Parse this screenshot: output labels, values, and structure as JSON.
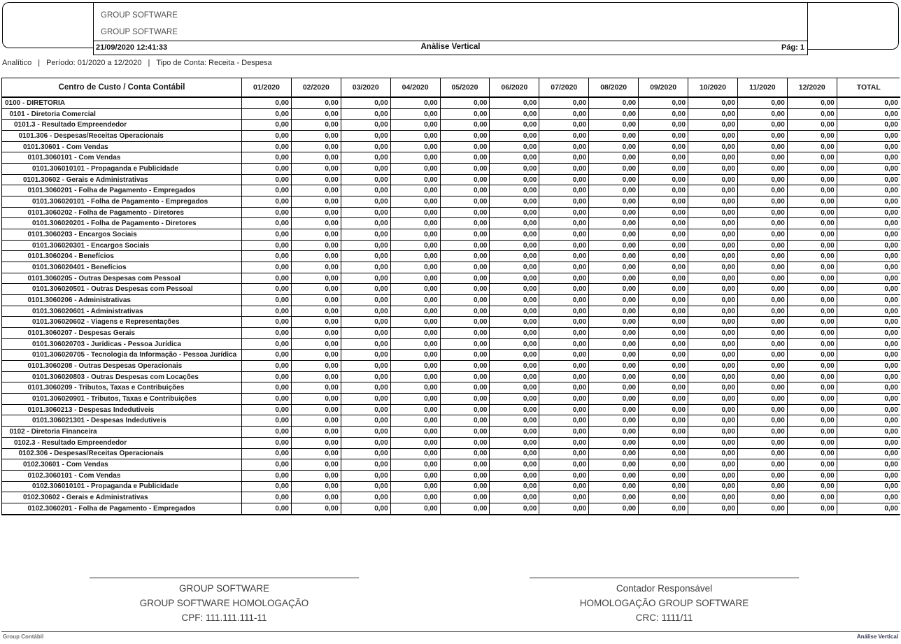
{
  "colors": {
    "border": "#000000",
    "table_text": "#1c1c1c",
    "company_text": "#4f4f4f",
    "signature_text": "#3d3d3d",
    "footer_left_text": "#6e6e6e",
    "footer_right_text": "#3a3a57"
  },
  "header": {
    "company_line1": "GROUP SOFTWARE",
    "company_line2": "GROUP SOFTWARE",
    "datetime": "21/09/2020 12:41:33",
    "report_title": "Anàlise Vertical",
    "page_label": "Pág: 1"
  },
  "filters": {
    "separator": "|",
    "parts": [
      "Analítico",
      "Período: 01/2020 a 12/2020",
      "Tipo de Conta: Receita - Despesa"
    ]
  },
  "table": {
    "first_column_header": "Centro de Custo / Conta Contábil",
    "month_headers": [
      "01/2020",
      "02/2020",
      "03/2020",
      "04/2020",
      "05/2020",
      "06/2020",
      "07/2020",
      "08/2020",
      "09/2020",
      "10/2020",
      "11/2020",
      "12/2020"
    ],
    "total_header": "TOTAL",
    "rows": [
      {
        "level": 0,
        "label": "0100 - DIRETORIA",
        "values": [
          "0,00",
          "0,00",
          "0,00",
          "0,00",
          "0,00",
          "0,00",
          "0,00",
          "0,00",
          "0,00",
          "0,00",
          "0,00",
          "0,00",
          "0,00"
        ]
      },
      {
        "level": 1,
        "label": "0101 - Diretoria Comercial",
        "values": [
          "0,00",
          "0,00",
          "0,00",
          "0,00",
          "0,00",
          "0,00",
          "0,00",
          "0,00",
          "0,00",
          "0,00",
          "0,00",
          "0,00",
          "0,00"
        ]
      },
      {
        "level": 2,
        "label": "0101.3 - Resultado Empreendedor",
        "values": [
          "0,00",
          "0,00",
          "0,00",
          "0,00",
          "0,00",
          "0,00",
          "0,00",
          "0,00",
          "0,00",
          "0,00",
          "0,00",
          "0,00",
          "0,00"
        ]
      },
      {
        "level": 3,
        "label": "0101.306 - Despesas/Receitas Operacionais",
        "values": [
          "0,00",
          "0,00",
          "0,00",
          "0,00",
          "0,00",
          "0,00",
          "0,00",
          "0,00",
          "0,00",
          "0,00",
          "0,00",
          "0,00",
          "0,00"
        ]
      },
      {
        "level": 4,
        "label": "0101.30601 - Com Vendas",
        "values": [
          "0,00",
          "0,00",
          "0,00",
          "0,00",
          "0,00",
          "0,00",
          "0,00",
          "0,00",
          "0,00",
          "0,00",
          "0,00",
          "0,00",
          "0,00"
        ]
      },
      {
        "level": 5,
        "label": "0101.3060101 - Com Vendas",
        "values": [
          "0,00",
          "0,00",
          "0,00",
          "0,00",
          "0,00",
          "0,00",
          "0,00",
          "0,00",
          "0,00",
          "0,00",
          "0,00",
          "0,00",
          "0,00"
        ]
      },
      {
        "level": 6,
        "label": "0101.306010101 - Propaganda e Publicidade",
        "values": [
          "0,00",
          "0,00",
          "0,00",
          "0,00",
          "0,00",
          "0,00",
          "0,00",
          "0,00",
          "0,00",
          "0,00",
          "0,00",
          "0,00",
          "0,00"
        ]
      },
      {
        "level": 4,
        "label": "0101.30602 - Gerais e Administrativas",
        "values": [
          "0,00",
          "0,00",
          "0,00",
          "0,00",
          "0,00",
          "0,00",
          "0,00",
          "0,00",
          "0,00",
          "0,00",
          "0,00",
          "0,00",
          "0,00"
        ]
      },
      {
        "level": 5,
        "label": "0101.3060201 - Folha de Pagamento - Empregados",
        "values": [
          "0,00",
          "0,00",
          "0,00",
          "0,00",
          "0,00",
          "0,00",
          "0,00",
          "0,00",
          "0,00",
          "0,00",
          "0,00",
          "0,00",
          "0,00"
        ]
      },
      {
        "level": 6,
        "label": "0101.306020101 - Folha de Pagamento - Empregados",
        "values": [
          "0,00",
          "0,00",
          "0,00",
          "0,00",
          "0,00",
          "0,00",
          "0,00",
          "0,00",
          "0,00",
          "0,00",
          "0,00",
          "0,00",
          "0,00"
        ]
      },
      {
        "level": 5,
        "label": "0101.3060202 - Folha de Pagamento - Diretores",
        "values": [
          "0,00",
          "0,00",
          "0,00",
          "0,00",
          "0,00",
          "0,00",
          "0,00",
          "0,00",
          "0,00",
          "0,00",
          "0,00",
          "0,00",
          "0,00"
        ]
      },
      {
        "level": 6,
        "label": "0101.306020201 - Folha de Pagamento - Diretores",
        "values": [
          "0,00",
          "0,00",
          "0,00",
          "0,00",
          "0,00",
          "0,00",
          "0,00",
          "0,00",
          "0,00",
          "0,00",
          "0,00",
          "0,00",
          "0,00"
        ]
      },
      {
        "level": 5,
        "label": "0101.3060203 - Encargos Sociais",
        "values": [
          "0,00",
          "0,00",
          "0,00",
          "0,00",
          "0,00",
          "0,00",
          "0,00",
          "0,00",
          "0,00",
          "0,00",
          "0,00",
          "0,00",
          "0,00"
        ]
      },
      {
        "level": 6,
        "label": "0101.306020301 - Encargos Sociais",
        "values": [
          "0,00",
          "0,00",
          "0,00",
          "0,00",
          "0,00",
          "0,00",
          "0,00",
          "0,00",
          "0,00",
          "0,00",
          "0,00",
          "0,00",
          "0,00"
        ]
      },
      {
        "level": 5,
        "label": "0101.3060204 - Benefícios",
        "values": [
          "0,00",
          "0,00",
          "0,00",
          "0,00",
          "0,00",
          "0,00",
          "0,00",
          "0,00",
          "0,00",
          "0,00",
          "0,00",
          "0,00",
          "0,00"
        ]
      },
      {
        "level": 6,
        "label": "0101.306020401 - Benefícios",
        "values": [
          "0,00",
          "0,00",
          "0,00",
          "0,00",
          "0,00",
          "0,00",
          "0,00",
          "0,00",
          "0,00",
          "0,00",
          "0,00",
          "0,00",
          "0,00"
        ]
      },
      {
        "level": 5,
        "label": "0101.3060205 - Outras Despesas com Pessoal",
        "values": [
          "0,00",
          "0,00",
          "0,00",
          "0,00",
          "0,00",
          "0,00",
          "0,00",
          "0,00",
          "0,00",
          "0,00",
          "0,00",
          "0,00",
          "0,00"
        ]
      },
      {
        "level": 6,
        "label": "0101.306020501 - Outras Despesas com Pessoal",
        "values": [
          "0,00",
          "0,00",
          "0,00",
          "0,00",
          "0,00",
          "0,00",
          "0,00",
          "0,00",
          "0,00",
          "0,00",
          "0,00",
          "0,00",
          "0,00"
        ]
      },
      {
        "level": 5,
        "label": "0101.3060206 - Administrativas",
        "values": [
          "0,00",
          "0,00",
          "0,00",
          "0,00",
          "0,00",
          "0,00",
          "0,00",
          "0,00",
          "0,00",
          "0,00",
          "0,00",
          "0,00",
          "0,00"
        ]
      },
      {
        "level": 6,
        "label": "0101.306020601 - Administrativas",
        "values": [
          "0,00",
          "0,00",
          "0,00",
          "0,00",
          "0,00",
          "0,00",
          "0,00",
          "0,00",
          "0,00",
          "0,00",
          "0,00",
          "0,00",
          "0,00"
        ]
      },
      {
        "level": 6,
        "label": "0101.306020602 - Viagens e Representações",
        "values": [
          "0,00",
          "0,00",
          "0,00",
          "0,00",
          "0,00",
          "0,00",
          "0,00",
          "0,00",
          "0,00",
          "0,00",
          "0,00",
          "0,00",
          "0,00"
        ]
      },
      {
        "level": 5,
        "label": "0101.3060207 - Despesas Gerais",
        "values": [
          "0,00",
          "0,00",
          "0,00",
          "0,00",
          "0,00",
          "0,00",
          "0,00",
          "0,00",
          "0,00",
          "0,00",
          "0,00",
          "0,00",
          "0,00"
        ]
      },
      {
        "level": 6,
        "label": "0101.306020703 - Jurídicas - Pessoa Jurídica",
        "values": [
          "0,00",
          "0,00",
          "0,00",
          "0,00",
          "0,00",
          "0,00",
          "0,00",
          "0,00",
          "0,00",
          "0,00",
          "0,00",
          "0,00",
          "0,00"
        ]
      },
      {
        "level": 6,
        "label": "0101.306020705 - Tecnologia da Informação - Pessoa Jurídica",
        "values": [
          "0,00",
          "0,00",
          "0,00",
          "0,00",
          "0,00",
          "0,00",
          "0,00",
          "0,00",
          "0,00",
          "0,00",
          "0,00",
          "0,00",
          "0,00"
        ]
      },
      {
        "level": 5,
        "label": "0101.3060208 - Outras Despesas Operacionais",
        "values": [
          "0,00",
          "0,00",
          "0,00",
          "0,00",
          "0,00",
          "0,00",
          "0,00",
          "0,00",
          "0,00",
          "0,00",
          "0,00",
          "0,00",
          "0,00"
        ]
      },
      {
        "level": 6,
        "label": "0101.306020803 - Outras Despesas com Locações",
        "values": [
          "0,00",
          "0,00",
          "0,00",
          "0,00",
          "0,00",
          "0,00",
          "0,00",
          "0,00",
          "0,00",
          "0,00",
          "0,00",
          "0,00",
          "0,00"
        ]
      },
      {
        "level": 5,
        "label": "0101.3060209 - Tributos, Taxas e Contribuições",
        "values": [
          "0,00",
          "0,00",
          "0,00",
          "0,00",
          "0,00",
          "0,00",
          "0,00",
          "0,00",
          "0,00",
          "0,00",
          "0,00",
          "0,00",
          "0,00"
        ]
      },
      {
        "level": 6,
        "label": "0101.306020901 - Tributos, Taxas e Contribuições",
        "values": [
          "0,00",
          "0,00",
          "0,00",
          "0,00",
          "0,00",
          "0,00",
          "0,00",
          "0,00",
          "0,00",
          "0,00",
          "0,00",
          "0,00",
          "0,00"
        ]
      },
      {
        "level": 5,
        "label": "0101.3060213 - Despesas Indedutiveis",
        "values": [
          "0,00",
          "0,00",
          "0,00",
          "0,00",
          "0,00",
          "0,00",
          "0,00",
          "0,00",
          "0,00",
          "0,00",
          "0,00",
          "0,00",
          "0,00"
        ]
      },
      {
        "level": 6,
        "label": "0101.306021301 - Despesas Indedutiveis",
        "values": [
          "0,00",
          "0,00",
          "0,00",
          "0,00",
          "0,00",
          "0,00",
          "0,00",
          "0,00",
          "0,00",
          "0,00",
          "0,00",
          "0,00",
          "0,00"
        ]
      },
      {
        "level": 1,
        "label": "0102 - Diretoria Financeira",
        "values": [
          "0,00",
          "0,00",
          "0,00",
          "0,00",
          "0,00",
          "0,00",
          "0,00",
          "0,00",
          "0,00",
          "0,00",
          "0,00",
          "0,00",
          "0,00"
        ]
      },
      {
        "level": 2,
        "label": "0102.3 - Resultado Empreendedor",
        "values": [
          "0,00",
          "0,00",
          "0,00",
          "0,00",
          "0,00",
          "0,00",
          "0,00",
          "0,00",
          "0,00",
          "0,00",
          "0,00",
          "0,00",
          "0,00"
        ]
      },
      {
        "level": 3,
        "label": "0102.306 - Despesas/Receitas Operacionais",
        "values": [
          "0,00",
          "0,00",
          "0,00",
          "0,00",
          "0,00",
          "0,00",
          "0,00",
          "0,00",
          "0,00",
          "0,00",
          "0,00",
          "0,00",
          "0,00"
        ]
      },
      {
        "level": 4,
        "label": "0102.30601 - Com Vendas",
        "values": [
          "0,00",
          "0,00",
          "0,00",
          "0,00",
          "0,00",
          "0,00",
          "0,00",
          "0,00",
          "0,00",
          "0,00",
          "0,00",
          "0,00",
          "0,00"
        ]
      },
      {
        "level": 5,
        "label": "0102.3060101 - Com Vendas",
        "values": [
          "0,00",
          "0,00",
          "0,00",
          "0,00",
          "0,00",
          "0,00",
          "0,00",
          "0,00",
          "0,00",
          "0,00",
          "0,00",
          "0,00",
          "0,00"
        ]
      },
      {
        "level": 6,
        "label": "0102.306010101 - Propaganda e Publicidade",
        "values": [
          "0,00",
          "0,00",
          "0,00",
          "0,00",
          "0,00",
          "0,00",
          "0,00",
          "0,00",
          "0,00",
          "0,00",
          "0,00",
          "0,00",
          "0,00"
        ]
      },
      {
        "level": 4,
        "label": "0102.30602 - Gerais e Administrativas",
        "values": [
          "0,00",
          "0,00",
          "0,00",
          "0,00",
          "0,00",
          "0,00",
          "0,00",
          "0,00",
          "0,00",
          "0,00",
          "0,00",
          "0,00",
          "0,00"
        ]
      },
      {
        "level": 5,
        "label": "0102.3060201 - Folha de Pagamento - Empregados",
        "values": [
          "0,00",
          "0,00",
          "0,00",
          "0,00",
          "0,00",
          "0,00",
          "0,00",
          "0,00",
          "0,00",
          "0,00",
          "0,00",
          "0,00",
          "0,00"
        ]
      }
    ]
  },
  "footer": {
    "left_signature": {
      "line1": "GROUP SOFTWARE",
      "line2": "GROUP SOFTWARE HOMOLOGAÇÃO",
      "line3": "CPF: 111.111.111-11"
    },
    "right_signature": {
      "line1": "Contador Responsável",
      "line2": "HOMOLOGAÇÃO GROUP SOFTWARE",
      "line3": "CRC: 1111/11"
    },
    "bottom_left": "Group Contábil",
    "bottom_right": "Análise Vertical"
  }
}
